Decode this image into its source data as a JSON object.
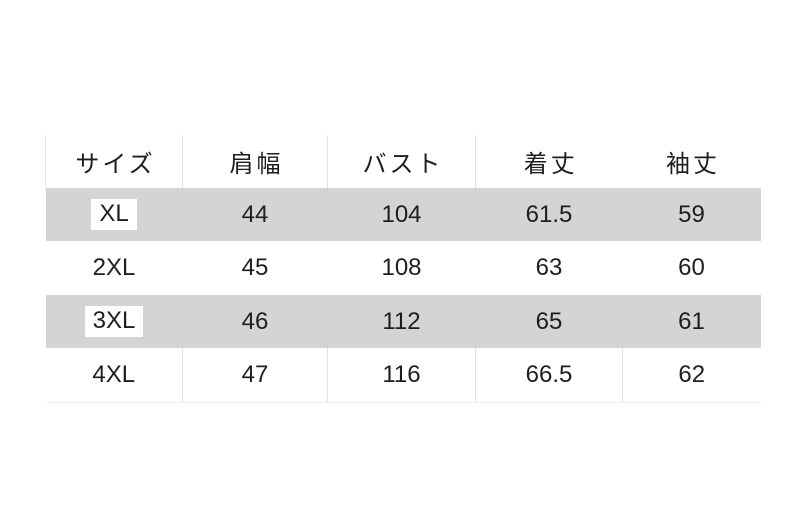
{
  "chart_data": {
    "type": "table",
    "columns": [
      "サイズ",
      "肩幅",
      "バスト",
      "着丈",
      "袖丈"
    ],
    "rows": [
      [
        "XL",
        "44",
        "104",
        "61.5",
        "59"
      ],
      [
        "2XL",
        "45",
        "108",
        "63",
        "60"
      ],
      [
        "3XL",
        "46",
        "112",
        "65",
        "61"
      ],
      [
        "4XL",
        "47",
        "116",
        "66.5",
        "62"
      ]
    ],
    "layout_hints": {
      "striped_rows": [
        "XL",
        "3XL"
      ],
      "highlighted_size_labels": [
        "XL",
        "3XL"
      ],
      "grid": "light vertical dividers in header and last row"
    }
  },
  "colors": {
    "stripe": "#d4d4d4",
    "divider": "#e3e3e3",
    "text": "#1e1e1e",
    "page_background": "#ffffff",
    "size_highlight_background": "#ffffff"
  }
}
